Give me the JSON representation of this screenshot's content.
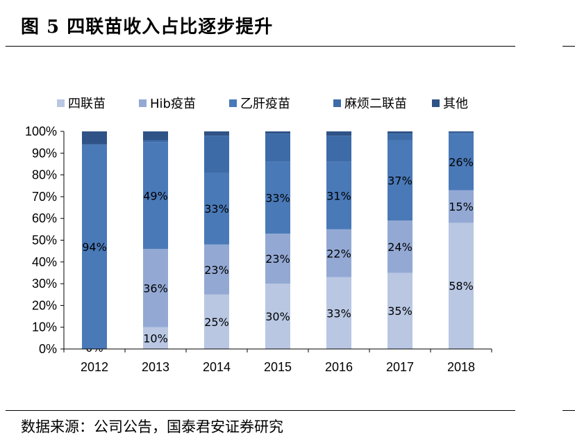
{
  "header": {
    "title": "图 5 四联苗收入占比逐步提升"
  },
  "footer": {
    "source": "数据来源：公司公告，国泰君安证券研究"
  },
  "colors": {
    "series": [
      "#b9c7e3",
      "#93a9d4",
      "#4a79b8",
      "#3d6ba8",
      "#2f5387"
    ]
  },
  "chart_data": {
    "type": "bar",
    "stacked": true,
    "categories": [
      "2012",
      "2013",
      "2014",
      "2015",
      "2016",
      "2017",
      "2018"
    ],
    "ylim": [
      0,
      100
    ],
    "yticks": [
      "0%",
      "10%",
      "20%",
      "30%",
      "40%",
      "50%",
      "60%",
      "70%",
      "80%",
      "90%",
      "100%"
    ],
    "legend_position": "top",
    "grid": false,
    "series": [
      {
        "name": "四联苗",
        "values": [
          0,
          10,
          25,
          30,
          33,
          35,
          58
        ],
        "labels": [
          "0%",
          "10%",
          "25%",
          "30%",
          "33%",
          "35%",
          "58%"
        ]
      },
      {
        "name": "Hib疫苗",
        "values": [
          0,
          36,
          23,
          23,
          22,
          24,
          15
        ],
        "labels": [
          "",
          "36%",
          "23%",
          "23%",
          "22%",
          "24%",
          "15%"
        ]
      },
      {
        "name": "乙肝疫苗",
        "values": [
          94,
          49,
          33,
          33,
          31,
          37,
          26
        ],
        "labels": [
          "94%",
          "49%",
          "33%",
          "33%",
          "31%",
          "37%",
          "26%"
        ]
      },
      {
        "name": "麻烦二联苗",
        "values": [
          0,
          1,
          17,
          13,
          12,
          3,
          0.5
        ],
        "labels": [
          "",
          "",
          "",
          "",
          "",
          "",
          ""
        ]
      },
      {
        "name": "其他",
        "values": [
          6,
          4,
          2,
          1,
          2,
          1,
          0.5
        ],
        "labels": [
          "",
          "",
          "",
          "",
          "",
          "",
          ""
        ]
      }
    ]
  }
}
